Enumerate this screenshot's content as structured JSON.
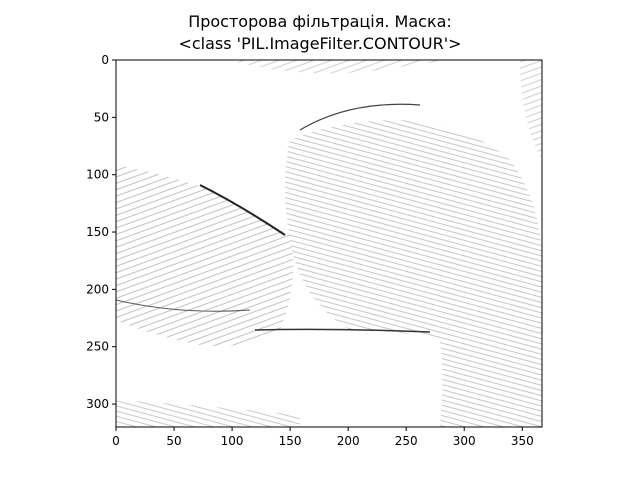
{
  "figure": {
    "title_line_1": "Просторова фільтрація. Маска:",
    "title_line_2": "<class 'PIL.ImageFilter.CONTOUR'>"
  },
  "image": {
    "description_icon": "grayscale-contour-filtered-photo",
    "extent_x": [
      0,
      367
    ],
    "extent_y": [
      320,
      0
    ]
  },
  "axes": {
    "x_ticks": [
      0,
      50,
      100,
      150,
      200,
      250,
      300,
      350
    ],
    "y_ticks": [
      0,
      50,
      100,
      150,
      200,
      250,
      300
    ]
  }
}
